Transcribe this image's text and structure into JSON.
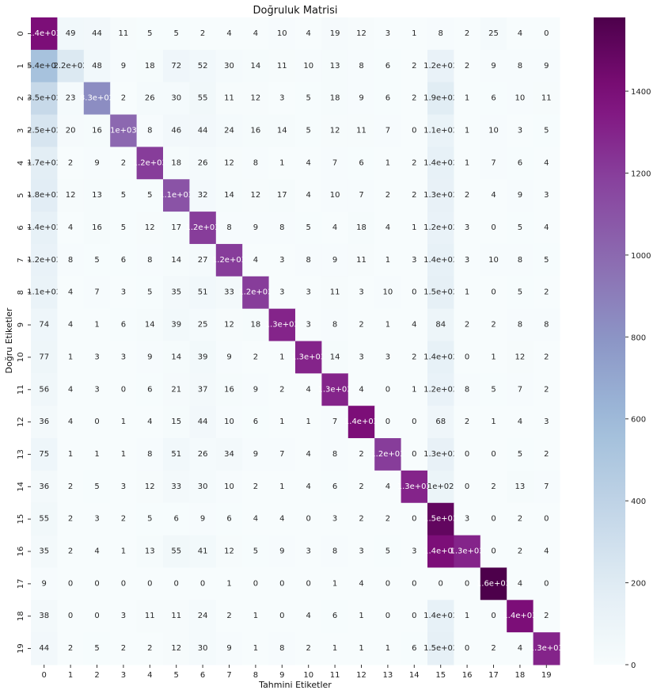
{
  "chart_data": {
    "type": "heatmap",
    "title": "Doğruluk Matrisi",
    "xlabel": "Tahmini Etiketler",
    "ylabel": "Doğru Etiketler",
    "categories": [
      "0",
      "1",
      "2",
      "3",
      "4",
      "5",
      "6",
      "7",
      "8",
      "9",
      "10",
      "11",
      "12",
      "13",
      "14",
      "15",
      "16",
      "17",
      "18",
      "19"
    ],
    "colormap": "BuPu",
    "vmin": 0,
    "vmax": 1580,
    "colorbar_ticks": [
      0,
      200,
      400,
      600,
      800,
      1000,
      1200,
      1400
    ],
    "values": [
      [
        1400,
        49,
        44,
        11,
        5,
        5,
        2,
        4,
        4,
        10,
        4,
        19,
        12,
        3,
        1,
        8,
        2,
        25,
        4,
        0
      ],
      [
        540,
        220,
        48,
        9,
        18,
        72,
        52,
        30,
        14,
        11,
        10,
        13,
        8,
        6,
        2,
        120,
        2,
        9,
        8,
        9
      ],
      [
        350,
        23,
        830,
        2,
        26,
        30,
        55,
        11,
        12,
        3,
        5,
        18,
        9,
        6,
        2,
        190,
        1,
        6,
        10,
        11
      ],
      [
        250,
        20,
        16,
        1000,
        8,
        46,
        44,
        24,
        16,
        14,
        5,
        12,
        11,
        7,
        0,
        110,
        1,
        10,
        3,
        5
      ],
      [
        170,
        2,
        9,
        2,
        1200,
        18,
        26,
        12,
        8,
        1,
        4,
        7,
        6,
        1,
        2,
        140,
        1,
        7,
        6,
        4
      ],
      [
        180,
        12,
        13,
        5,
        5,
        1100,
        32,
        14,
        12,
        17,
        4,
        10,
        7,
        2,
        2,
        130,
        2,
        4,
        9,
        3
      ],
      [
        140,
        4,
        16,
        5,
        12,
        17,
        1200,
        8,
        9,
        8,
        5,
        4,
        18,
        4,
        1,
        120,
        3,
        0,
        5,
        4
      ],
      [
        120,
        8,
        5,
        6,
        8,
        14,
        27,
        1200,
        4,
        3,
        8,
        9,
        11,
        1,
        3,
        140,
        3,
        10,
        8,
        5
      ],
      [
        110,
        4,
        7,
        3,
        5,
        35,
        51,
        33,
        1200,
        3,
        3,
        11,
        3,
        10,
        0,
        150,
        1,
        0,
        5,
        2
      ],
      [
        74,
        4,
        1,
        6,
        14,
        39,
        25,
        12,
        18,
        1300,
        3,
        8,
        2,
        1,
        4,
        84,
        2,
        2,
        8,
        8
      ],
      [
        77,
        1,
        3,
        3,
        9,
        14,
        39,
        9,
        2,
        1,
        1300,
        14,
        3,
        3,
        2,
        140,
        0,
        1,
        12,
        2
      ],
      [
        56,
        4,
        3,
        0,
        6,
        21,
        37,
        16,
        9,
        2,
        4,
        1300,
        4,
        0,
        1,
        120,
        8,
        5,
        7,
        2
      ],
      [
        36,
        4,
        0,
        1,
        4,
        15,
        44,
        10,
        6,
        1,
        1,
        7,
        1400,
        0,
        0,
        68,
        2,
        1,
        4,
        3
      ],
      [
        75,
        1,
        1,
        1,
        8,
        51,
        26,
        34,
        9,
        7,
        4,
        8,
        2,
        1200,
        0,
        130,
        0,
        0,
        5,
        2
      ],
      [
        36,
        2,
        5,
        3,
        12,
        33,
        30,
        10,
        2,
        1,
        4,
        6,
        2,
        4,
        1300,
        100,
        0,
        2,
        13,
        7
      ],
      [
        55,
        2,
        3,
        2,
        5,
        6,
        9,
        6,
        4,
        4,
        0,
        3,
        2,
        2,
        0,
        1500,
        3,
        0,
        2,
        0
      ],
      [
        35,
        2,
        4,
        1,
        13,
        55,
        41,
        12,
        5,
        9,
        3,
        8,
        3,
        5,
        3,
        1400,
        1300,
        0,
        2,
        4
      ],
      [
        9,
        0,
        0,
        0,
        0,
        0,
        0,
        1,
        0,
        0,
        0,
        1,
        4,
        0,
        0,
        0,
        0,
        1600,
        4,
        0
      ],
      [
        38,
        0,
        0,
        3,
        11,
        11,
        24,
        2,
        1,
        0,
        4,
        6,
        1,
        0,
        0,
        140,
        1,
        0,
        1400,
        2
      ],
      [
        44,
        2,
        5,
        2,
        2,
        12,
        30,
        9,
        1,
        8,
        2,
        1,
        1,
        1,
        6,
        150,
        0,
        2,
        4,
        1300
      ]
    ],
    "labels": [
      [
        "1.4e+03",
        "49",
        "44",
        "11",
        "5",
        "5",
        "2",
        "4",
        "4",
        "10",
        "4",
        "19",
        "12",
        "3",
        "1",
        "8",
        "2",
        "25",
        "4",
        "0"
      ],
      [
        "5.4e+02",
        "2.2e+02",
        "48",
        "9",
        "18",
        "72",
        "52",
        "30",
        "14",
        "11",
        "10",
        "13",
        "8",
        "6",
        "2",
        "1.2e+02",
        "2",
        "9",
        "8",
        "9"
      ],
      [
        "3.5e+02",
        "23",
        "8.3e+02",
        "2",
        "26",
        "30",
        "55",
        "11",
        "12",
        "3",
        "5",
        "18",
        "9",
        "6",
        "2",
        "1.9e+02",
        "1",
        "6",
        "10",
        "11"
      ],
      [
        "2.5e+02",
        "20",
        "16",
        "1e+03",
        "8",
        "46",
        "44",
        "24",
        "16",
        "14",
        "5",
        "12",
        "11",
        "7",
        "0",
        "1.1e+02",
        "1",
        "10",
        "3",
        "5"
      ],
      [
        "1.7e+02",
        "2",
        "9",
        "2",
        "1.2e+03",
        "18",
        "26",
        "12",
        "8",
        "1",
        "4",
        "7",
        "6",
        "1",
        "2",
        "1.4e+02",
        "1",
        "7",
        "6",
        "4"
      ],
      [
        "1.8e+02",
        "12",
        "13",
        "5",
        "5",
        "1.1e+03",
        "32",
        "14",
        "12",
        "17",
        "4",
        "10",
        "7",
        "2",
        "2",
        "1.3e+02",
        "2",
        "4",
        "9",
        "3"
      ],
      [
        "1.4e+02",
        "4",
        "16",
        "5",
        "12",
        "17",
        "1.2e+03",
        "8",
        "9",
        "8",
        "5",
        "4",
        "18",
        "4",
        "1",
        "1.2e+02",
        "3",
        "0",
        "5",
        "4"
      ],
      [
        "1.2e+02",
        "8",
        "5",
        "6",
        "8",
        "14",
        "27",
        "1.2e+03",
        "4",
        "3",
        "8",
        "9",
        "11",
        "1",
        "3",
        "1.4e+02",
        "3",
        "10",
        "8",
        "5"
      ],
      [
        "1.1e+02",
        "4",
        "7",
        "3",
        "5",
        "35",
        "51",
        "33",
        "1.2e+03",
        "3",
        "3",
        "11",
        "3",
        "10",
        "0",
        "1.5e+02",
        "1",
        "0",
        "5",
        "2"
      ],
      [
        "74",
        "4",
        "1",
        "6",
        "14",
        "39",
        "25",
        "12",
        "18",
        "1.3e+03",
        "3",
        "8",
        "2",
        "1",
        "4",
        "84",
        "2",
        "2",
        "8",
        "8"
      ],
      [
        "77",
        "1",
        "3",
        "3",
        "9",
        "14",
        "39",
        "9",
        "2",
        "1",
        "1.3e+03",
        "14",
        "3",
        "3",
        "2",
        "1.4e+02",
        "0",
        "1",
        "12",
        "2"
      ],
      [
        "56",
        "4",
        "3",
        "0",
        "6",
        "21",
        "37",
        "16",
        "9",
        "2",
        "4",
        "1.3e+03",
        "4",
        "0",
        "1",
        "1.2e+02",
        "8",
        "5",
        "7",
        "2"
      ],
      [
        "36",
        "4",
        "0",
        "1",
        "4",
        "15",
        "44",
        "10",
        "6",
        "1",
        "1",
        "7",
        "1.4e+03",
        "0",
        "0",
        "68",
        "2",
        "1",
        "4",
        "3"
      ],
      [
        "75",
        "1",
        "1",
        "1",
        "8",
        "51",
        "26",
        "34",
        "9",
        "7",
        "4",
        "8",
        "2",
        "1.2e+03",
        "0",
        "1.3e+02",
        "0",
        "0",
        "5",
        "2"
      ],
      [
        "36",
        "2",
        "5",
        "3",
        "12",
        "33",
        "30",
        "10",
        "2",
        "1",
        "4",
        "6",
        "2",
        "4",
        "1.3e+03",
        "1e+02",
        "0",
        "2",
        "13",
        "7"
      ],
      [
        "55",
        "2",
        "3",
        "2",
        "5",
        "6",
        "9",
        "6",
        "4",
        "4",
        "0",
        "3",
        "2",
        "2",
        "0",
        "1.5e+03",
        "3",
        "0",
        "2",
        "0"
      ],
      [
        "35",
        "2",
        "4",
        "1",
        "13",
        "55",
        "41",
        "12",
        "5",
        "9",
        "3",
        "8",
        "3",
        "5",
        "3",
        "1.4e+03",
        "1.3e+03",
        "0",
        "2",
        "4"
      ],
      [
        "9",
        "0",
        "0",
        "0",
        "0",
        "0",
        "0",
        "1",
        "0",
        "0",
        "0",
        "1",
        "4",
        "0",
        "0",
        "0",
        "0",
        "1.6e+03",
        "4",
        "0"
      ],
      [
        "38",
        "0",
        "0",
        "3",
        "11",
        "11",
        "24",
        "2",
        "1",
        "0",
        "4",
        "6",
        "1",
        "0",
        "0",
        "1.4e+02",
        "1",
        "0",
        "1.4e+03",
        "2"
      ],
      [
        "44",
        "2",
        "5",
        "2",
        "2",
        "12",
        "30",
        "9",
        "1",
        "8",
        "2",
        "1",
        "1",
        "1",
        "6",
        "1.5e+02",
        "0",
        "2",
        "4",
        "1.3e+03"
      ]
    ]
  }
}
